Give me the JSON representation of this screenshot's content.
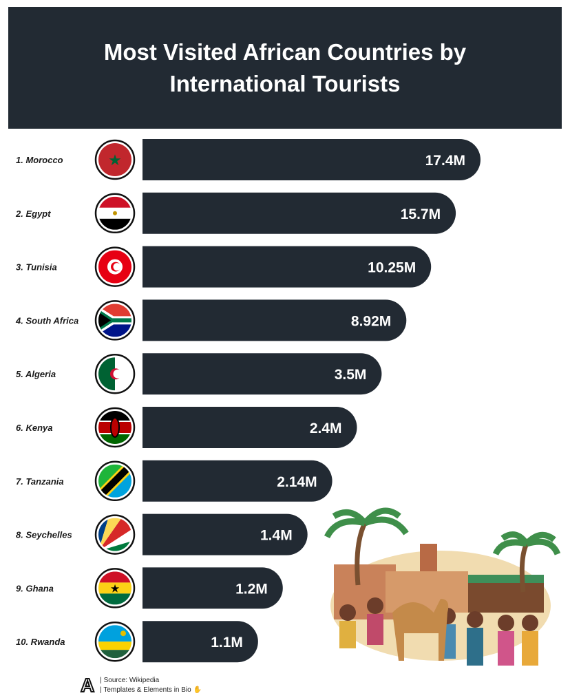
{
  "header": {
    "title": "Most Visited African Countries by International Tourists"
  },
  "colors": {
    "bar": "#222a33",
    "header_bg": "#222a33",
    "value_text": "#ffffff"
  },
  "chart_data": {
    "type": "bar",
    "orientation": "horizontal",
    "title": "Most Visited African Countries by International Tourists",
    "categories": [
      "1. Morocco",
      "2. Egypt",
      "3. Tunisia",
      "4. South Africa",
      "5. Algeria",
      "6. Kenya",
      "7. Tanzania",
      "8. Seychelles",
      "9. Ghana",
      "10. Rwanda"
    ],
    "flags": [
      "morocco-flag-icon",
      "egypt-flag-icon",
      "tunisia-flag-icon",
      "south-africa-flag-icon",
      "algeria-flag-icon",
      "kenya-flag-icon",
      "tanzania-flag-icon",
      "seychelles-flag-icon",
      "ghana-flag-icon",
      "rwanda-flag-icon"
    ],
    "values": [
      17.4,
      15.7,
      10.25,
      8.92,
      3.5,
      2.4,
      2.14,
      1.4,
      1.2,
      1.1
    ],
    "value_labels": [
      "17.4M",
      "15.7M",
      "10.25M",
      "8.92M",
      "3.5M",
      "2.4M",
      "2.14M",
      "1.4M",
      "1.2M",
      "1.1M"
    ],
    "unit": "M",
    "grid": false
  },
  "footer": {
    "logo": "A",
    "source": "| Source: Wikipedia",
    "credit": "| Templates & Elements in Bio"
  }
}
